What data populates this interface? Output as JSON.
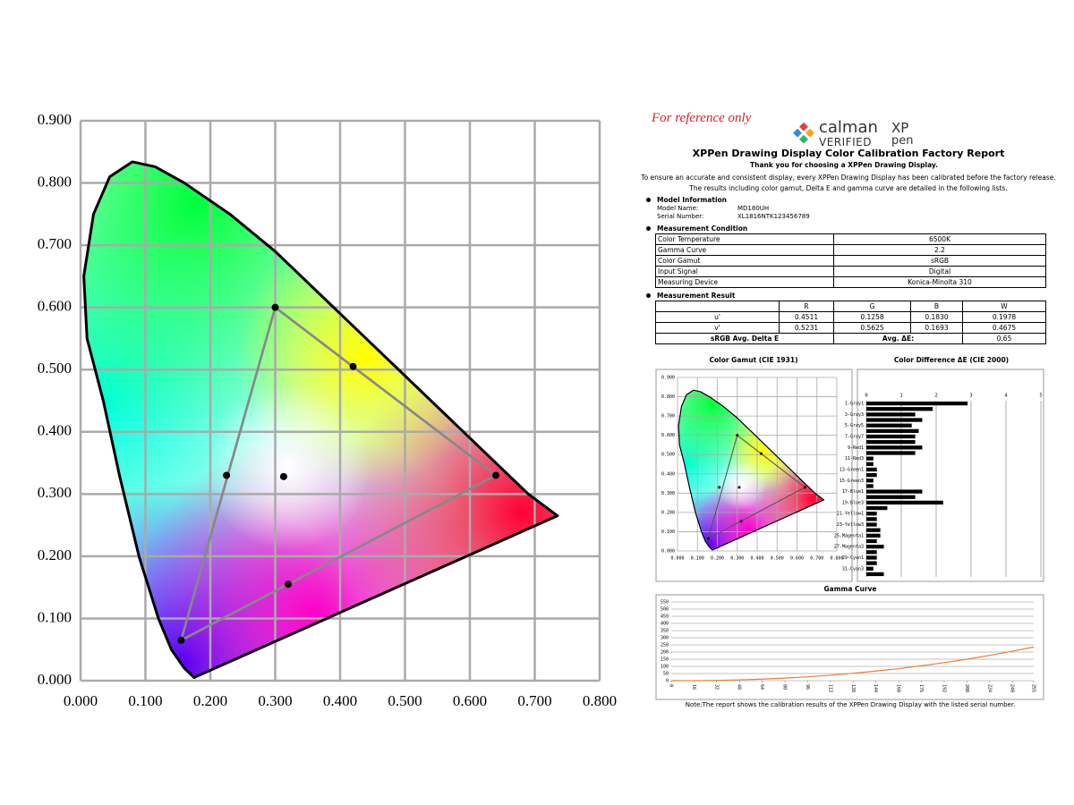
{
  "report": {
    "reference_note": "For reference only",
    "logo": {
      "brand": "calman",
      "badge": "VERIFIED",
      "partner_top": "XP",
      "partner_bottom": "pen"
    },
    "title": "XPPen Drawing Display Color Calibration Factory Report",
    "thanks": "Thank you for choosing a  XPPen Drawing Display.",
    "intro": [
      "To ensure an accurate and consistent display, every XPPen Drawing Display has been calibrated before the factory release.",
      "The results including color gamut, Delta E and gamma curve are detailed in the following lists."
    ],
    "model": {
      "heading": "Model Information",
      "rows": [
        [
          "Model Name:",
          "MD180UH"
        ],
        [
          "Serial Number:",
          "XL1816NTK123456789"
        ]
      ]
    },
    "condition": {
      "heading": "Measurement Condition",
      "rows": [
        [
          "Color Temperature",
          "6500K"
        ],
        [
          "Gamma Curve",
          "2.2"
        ],
        [
          "Color Gamut",
          "sRGB"
        ],
        [
          "Input Signal",
          "Digital"
        ],
        [
          "Measuring Device",
          "Konica-Minolta 310"
        ]
      ]
    },
    "result": {
      "heading": "Measurement Result",
      "header": [
        "R",
        "G",
        "B",
        "W"
      ],
      "rows": [
        [
          "u'",
          "0.4511",
          "0.1258",
          "0.1830",
          "0.1978"
        ],
        [
          "v'",
          "0.5231",
          "0.5625",
          "0.1693",
          "0.4675"
        ]
      ],
      "summary": [
        "sRGB Avg. Delta E",
        "Avg. ΔE:",
        "0.65"
      ]
    },
    "note": "Note:The report shows the calibration results of the XPPen Drawing Display with the listed serial number."
  },
  "chart_data": [
    {
      "type": "cie",
      "color": "#000000",
      "gamut_color": "#888888",
      "grid": true,
      "x": [
        0.3,
        0.42,
        0.64,
        0.225,
        0.313,
        0.32,
        0.155
      ],
      "y": [
        0.6,
        0.505,
        0.33,
        0.33,
        0.328,
        0.155,
        0.065
      ],
      "gamut": {
        "x": [
          0.64,
          0.3,
          0.155
        ],
        "y": [
          0.33,
          0.6,
          0.065
        ]
      },
      "locus": {
        "x": [
          0.175,
          0.16,
          0.14,
          0.12,
          0.09,
          0.06,
          0.035,
          0.01,
          0.005,
          0.02,
          0.045,
          0.08,
          0.115,
          0.16,
          0.23,
          0.3,
          0.37,
          0.44,
          0.51,
          0.58,
          0.64,
          0.69,
          0.735
        ],
        "y": [
          0.005,
          0.02,
          0.05,
          0.1,
          0.2,
          0.33,
          0.45,
          0.55,
          0.65,
          0.75,
          0.81,
          0.834,
          0.826,
          0.8,
          0.75,
          0.69,
          0.62,
          0.55,
          0.48,
          0.41,
          0.35,
          0.3,
          0.265
        ]
      },
      "xlim": [
        0,
        0.8
      ],
      "ylim": [
        0,
        0.9
      ],
      "xticks": [
        {
          "value": 0,
          "label": "0.000"
        },
        {
          "value": 0.1,
          "label": "0.100"
        },
        {
          "value": 0.2,
          "label": "0.200"
        },
        {
          "value": 0.3,
          "label": "0.300"
        },
        {
          "value": 0.4,
          "label": "0.400"
        },
        {
          "value": 0.5,
          "label": "0.500"
        },
        {
          "value": 0.6,
          "label": "0.600"
        },
        {
          "value": 0.7,
          "label": "0.700"
        },
        {
          "value": 0.8,
          "label": "0.800"
        }
      ],
      "yticks": [
        {
          "value": 0,
          "label": "0.000"
        },
        {
          "value": 0.1,
          "label": "0.100"
        },
        {
          "value": 0.2,
          "label": "0.200"
        },
        {
          "value": 0.3,
          "label": "0.300"
        },
        {
          "value": 0.4,
          "label": "0.400"
        },
        {
          "value": 0.5,
          "label": "0.500"
        },
        {
          "value": 0.6,
          "label": "0.600"
        },
        {
          "value": 0.7,
          "label": "0.700"
        },
        {
          "value": 0.8,
          "label": "0.800"
        },
        {
          "value": 0.9,
          "label": "0.900"
        }
      ]
    },
    {
      "type": "cie",
      "title": "Color Gamut (CIE 1931)",
      "color": "#000000",
      "gamut_color": "#555555",
      "grid": true,
      "x": [
        0.3,
        0.42,
        0.64,
        0.21,
        0.31,
        0.32,
        0.155
      ],
      "y": [
        0.6,
        0.505,
        0.33,
        0.33,
        0.33,
        0.155,
        0.065
      ],
      "gamut": {
        "x": [
          0.64,
          0.3,
          0.155
        ],
        "y": [
          0.33,
          0.6,
          0.065
        ]
      },
      "locus": {
        "x": [
          0.175,
          0.16,
          0.14,
          0.12,
          0.09,
          0.06,
          0.035,
          0.01,
          0.005,
          0.02,
          0.045,
          0.08,
          0.115,
          0.16,
          0.23,
          0.3,
          0.37,
          0.44,
          0.51,
          0.58,
          0.64,
          0.69,
          0.735
        ],
        "y": [
          0.005,
          0.02,
          0.05,
          0.1,
          0.2,
          0.33,
          0.45,
          0.55,
          0.65,
          0.75,
          0.81,
          0.834,
          0.826,
          0.8,
          0.75,
          0.69,
          0.62,
          0.55,
          0.48,
          0.41,
          0.35,
          0.3,
          0.265
        ]
      },
      "xlim": [
        0,
        0.8
      ],
      "ylim": [
        0,
        0.9
      ],
      "xticks": [
        {
          "value": 0,
          "label": "0.000"
        },
        {
          "value": 0.1,
          "label": "0.100"
        },
        {
          "value": 0.2,
          "label": "0.200"
        },
        {
          "value": 0.3,
          "label": "0.300"
        },
        {
          "value": 0.4,
          "label": "0.400"
        },
        {
          "value": 0.5,
          "label": "0.500"
        },
        {
          "value": 0.6,
          "label": "0.600"
        },
        {
          "value": 0.7,
          "label": "0.700"
        },
        {
          "value": 0.8,
          "label": "0.800"
        }
      ],
      "yticks": [
        {
          "value": 0,
          "label": "0.000"
        },
        {
          "value": 0.1,
          "label": "0.100"
        },
        {
          "value": 0.2,
          "label": "0.200"
        },
        {
          "value": 0.3,
          "label": "0.300"
        },
        {
          "value": 0.4,
          "label": "0.400"
        },
        {
          "value": 0.5,
          "label": "0.500"
        },
        {
          "value": 0.6,
          "label": "0.600"
        },
        {
          "value": 0.7,
          "label": "0.700"
        },
        {
          "value": 0.8,
          "label": "0.800"
        },
        {
          "value": 0.9,
          "label": "0.900"
        }
      ]
    },
    {
      "type": "hbar",
      "title": "Color Difference ΔE (CIE 2000)",
      "color": "#000000",
      "grid": true,
      "categories": [
        "1-Gray1",
        null,
        "3-Gray3",
        null,
        "5-Gray5",
        null,
        "7-Gray7",
        null,
        "9-Red1",
        null,
        "11-Red3",
        null,
        "13-Green1",
        null,
        "15-Green3",
        null,
        "17-Blue1",
        null,
        "19-Blue3",
        null,
        "21-Yellow1",
        null,
        "23-Yellow3",
        null,
        "25-Magenta1",
        null,
        "27-Magenta3",
        null,
        "29-Cyan1",
        null,
        "31-Cyan3",
        null
      ],
      "values": [
        2.9,
        1.9,
        1.4,
        1.6,
        1.3,
        1.5,
        1.4,
        1.4,
        1.6,
        1.4,
        0.2,
        0.2,
        0.3,
        0.3,
        0.2,
        0.2,
        1.6,
        1.4,
        2.2,
        0.6,
        0.3,
        0.3,
        0.3,
        0.4,
        0.4,
        0.3,
        0.5,
        0.3,
        0.3,
        0.3,
        0.2,
        0.5
      ],
      "xlim": [
        0,
        5
      ],
      "xticks": [
        0,
        1,
        2,
        3,
        4,
        5
      ]
    },
    {
      "type": "line",
      "title": "Gamma Curve",
      "grid": true,
      "x": [
        0,
        16,
        32,
        48,
        64,
        80,
        96,
        112,
        128,
        144,
        160,
        176,
        192,
        208,
        224,
        240,
        255
      ],
      "series": [
        {
          "color": "#ed7d31",
          "values": [
            0,
            0.5,
            2,
            6,
            11,
            18,
            27,
            38,
            52,
            67,
            84,
            104,
            126,
            150,
            177,
            206,
            235
          ]
        }
      ],
      "xlim": [
        0,
        255
      ],
      "ylim": [
        0,
        550
      ],
      "xticks": [
        0,
        16,
        32,
        48,
        64,
        80,
        96,
        112,
        128,
        144,
        160,
        176,
        192,
        208,
        224,
        240,
        255
      ],
      "yticks": [
        0,
        50,
        100,
        150,
        200,
        250,
        300,
        350,
        400,
        450,
        500,
        550
      ]
    }
  ]
}
